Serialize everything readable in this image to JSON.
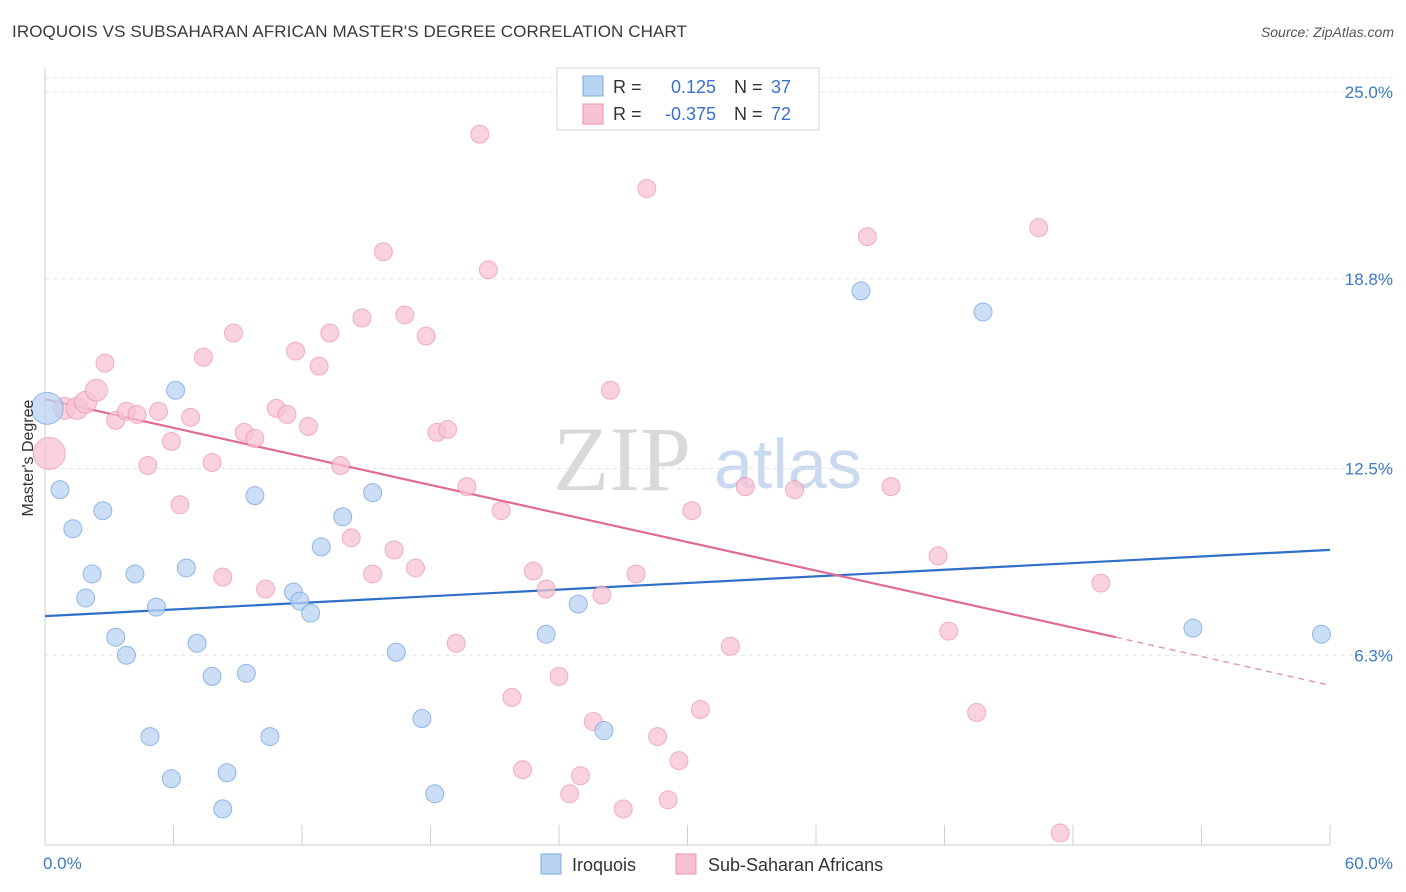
{
  "header": {
    "title": "IROQUOIS VS SUBSAHARAN AFRICAN MASTER'S DEGREE CORRELATION CHART",
    "source": "Source: ZipAtlas.com"
  },
  "watermark": {
    "zip": "ZIP",
    "atlas": "atlas"
  },
  "legend": {
    "rows": [
      {
        "r_label": "R =",
        "r_value": "0.125",
        "n_label": "N =",
        "n_value": "37",
        "color": "#a8c8f0"
      },
      {
        "r_label": "R =",
        "r_value": "-0.375",
        "n_label": "N =",
        "n_value": "72",
        "color": "#f5b8c8"
      }
    ]
  },
  "bottom_legend": [
    "Iroquois",
    "Sub-Saharan Africans"
  ],
  "chart_data": {
    "type": "scatter",
    "title": "IROQUOIS VS SUBSAHARAN AFRICAN MASTER'S DEGREE CORRELATION CHART",
    "xlabel": "",
    "ylabel": "Master's Degree",
    "xlim": [
      0,
      60
    ],
    "ylim": [
      0,
      26
    ],
    "x_tick_labels": [
      "0.0%",
      "60.0%"
    ],
    "y_ticks": [
      6.3,
      12.5,
      18.8,
      25.0
    ],
    "y_tick_labels": [
      "6.3%",
      "12.5%",
      "18.8%",
      "25.0%"
    ],
    "grid": true,
    "legend_position": "top-center",
    "series": [
      {
        "name": "Iroquois",
        "color": "#6a9fdc",
        "fill": "#b9d3f3",
        "trend": {
          "x": [
            0,
            60
          ],
          "y": [
            7.6,
            9.8
          ]
        },
        "points": [
          [
            0.1,
            14.5
          ],
          [
            0.7,
            11.8
          ],
          [
            1.3,
            10.5
          ],
          [
            1.9,
            8.2
          ],
          [
            2.2,
            9.0
          ],
          [
            2.7,
            11.1
          ],
          [
            3.3,
            6.9
          ],
          [
            3.8,
            6.3
          ],
          [
            4.2,
            9.0
          ],
          [
            4.9,
            3.6
          ],
          [
            5.2,
            7.9
          ],
          [
            5.9,
            2.2
          ],
          [
            6.1,
            15.1
          ],
          [
            6.6,
            9.2
          ],
          [
            7.1,
            6.7
          ],
          [
            7.8,
            5.6
          ],
          [
            8.3,
            1.2
          ],
          [
            8.5,
            2.4
          ],
          [
            9.4,
            5.7
          ],
          [
            9.8,
            11.6
          ],
          [
            10.5,
            3.6
          ],
          [
            11.6,
            8.4
          ],
          [
            11.9,
            8.1
          ],
          [
            12.4,
            7.7
          ],
          [
            12.9,
            9.9
          ],
          [
            13.9,
            10.9
          ],
          [
            15.3,
            11.7
          ],
          [
            16.4,
            6.4
          ],
          [
            17.6,
            4.2
          ],
          [
            18.2,
            1.7
          ],
          [
            23.4,
            7.0
          ],
          [
            24.9,
            8.0
          ],
          [
            26.1,
            3.8
          ],
          [
            38.1,
            18.4
          ],
          [
            43.8,
            17.7
          ],
          [
            53.6,
            7.2
          ],
          [
            59.6,
            7.0
          ]
        ]
      },
      {
        "name": "Sub-Saharan Africans",
        "color": "#e87ba0",
        "fill": "#f7c3d2",
        "trend": {
          "x": [
            0,
            50.0
          ],
          "y": [
            14.8,
            6.9
          ]
        },
        "trend_dashed": {
          "x": [
            50.0,
            60
          ],
          "y": [
            6.9,
            5.3
          ]
        },
        "points": [
          [
            0.2,
            13.0
          ],
          [
            0.9,
            14.5
          ],
          [
            1.5,
            14.5
          ],
          [
            1.9,
            14.7
          ],
          [
            2.4,
            15.1
          ],
          [
            2.8,
            16.0
          ],
          [
            3.3,
            14.1
          ],
          [
            3.8,
            14.4
          ],
          [
            4.3,
            14.3
          ],
          [
            4.8,
            12.6
          ],
          [
            5.3,
            14.4
          ],
          [
            5.9,
            13.4
          ],
          [
            6.3,
            11.3
          ],
          [
            6.8,
            14.2
          ],
          [
            7.4,
            16.2
          ],
          [
            7.8,
            12.7
          ],
          [
            8.3,
            8.9
          ],
          [
            8.8,
            17.0
          ],
          [
            9.3,
            13.7
          ],
          [
            9.8,
            13.5
          ],
          [
            10.3,
            8.5
          ],
          [
            10.8,
            14.5
          ],
          [
            11.3,
            14.3
          ],
          [
            11.7,
            16.4
          ],
          [
            12.3,
            13.9
          ],
          [
            12.8,
            15.9
          ],
          [
            13.3,
            17.0
          ],
          [
            13.8,
            12.6
          ],
          [
            14.3,
            10.2
          ],
          [
            14.8,
            17.5
          ],
          [
            15.3,
            9.0
          ],
          [
            15.8,
            19.7
          ],
          [
            16.3,
            9.8
          ],
          [
            16.8,
            17.6
          ],
          [
            17.3,
            9.2
          ],
          [
            17.8,
            16.9
          ],
          [
            18.3,
            13.7
          ],
          [
            18.8,
            13.8
          ],
          [
            19.2,
            6.7
          ],
          [
            19.7,
            11.9
          ],
          [
            20.3,
            23.6
          ],
          [
            20.7,
            19.1
          ],
          [
            21.3,
            11.1
          ],
          [
            21.8,
            4.9
          ],
          [
            22.3,
            2.5
          ],
          [
            22.8,
            9.1
          ],
          [
            23.4,
            8.5
          ],
          [
            24.0,
            5.6
          ],
          [
            24.5,
            1.7
          ],
          [
            25.0,
            2.3
          ],
          [
            25.6,
            4.1
          ],
          [
            26.0,
            8.3
          ],
          [
            26.4,
            15.1
          ],
          [
            27.0,
            1.2
          ],
          [
            27.6,
            9.0
          ],
          [
            28.1,
            21.8
          ],
          [
            28.6,
            3.6
          ],
          [
            29.1,
            1.5
          ],
          [
            29.6,
            2.8
          ],
          [
            30.2,
            11.1
          ],
          [
            30.6,
            4.5
          ],
          [
            32.0,
            6.6
          ],
          [
            32.7,
            11.9
          ],
          [
            35.0,
            11.8
          ],
          [
            38.4,
            20.2
          ],
          [
            39.5,
            11.9
          ],
          [
            41.7,
            9.6
          ],
          [
            42.2,
            7.1
          ],
          [
            43.5,
            4.4
          ],
          [
            46.4,
            20.5
          ],
          [
            47.4,
            0.4
          ],
          [
            49.3,
            8.7
          ]
        ]
      }
    ]
  }
}
